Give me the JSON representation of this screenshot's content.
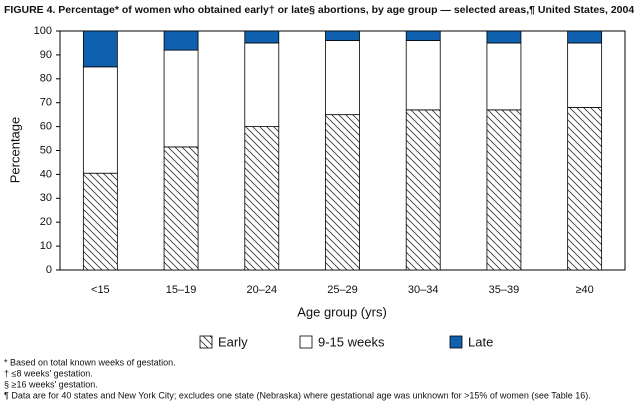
{
  "chart_data": {
    "type": "stacked_bar",
    "title": "FIGURE 4. Percentage* of women who obtained early† or late§ abortions, by age group — selected areas,¶ United States, 2004",
    "x_label": "Age group (yrs)",
    "y_label": "Percentage",
    "categories": [
      "<15",
      "15–19",
      "20–24",
      "25–29",
      "30–34",
      "35–39",
      "≥40"
    ],
    "series": [
      {
        "name": "Early",
        "color": "#333333",
        "pattern": "hatch",
        "values": [
          40.5,
          51.5,
          60,
          65,
          67,
          67,
          68
        ]
      },
      {
        "name": "9-15 weeks",
        "color": "#ffffff",
        "values": [
          44.5,
          40.5,
          35,
          31,
          29,
          28,
          27
        ]
      },
      {
        "name": "Late",
        "color": "#1060b0",
        "values": [
          15,
          8,
          5,
          4,
          4,
          5,
          5
        ]
      }
    ],
    "ylim": [
      0,
      100
    ],
    "yticks": [
      0,
      10,
      20,
      30,
      40,
      50,
      60,
      70,
      80,
      90,
      100
    ],
    "grid": false,
    "legend": "bottom",
    "footnotes": [
      "* Based on total known weeks of gestation.",
      "† ≤8 weeks' gestation.",
      "§ ≥16 weeks' gestation.",
      "¶ Data are for 40 states and New York City; excludes one state (Nebraska) where gestational age was unknown for >15% of women (see Table 16)."
    ]
  }
}
